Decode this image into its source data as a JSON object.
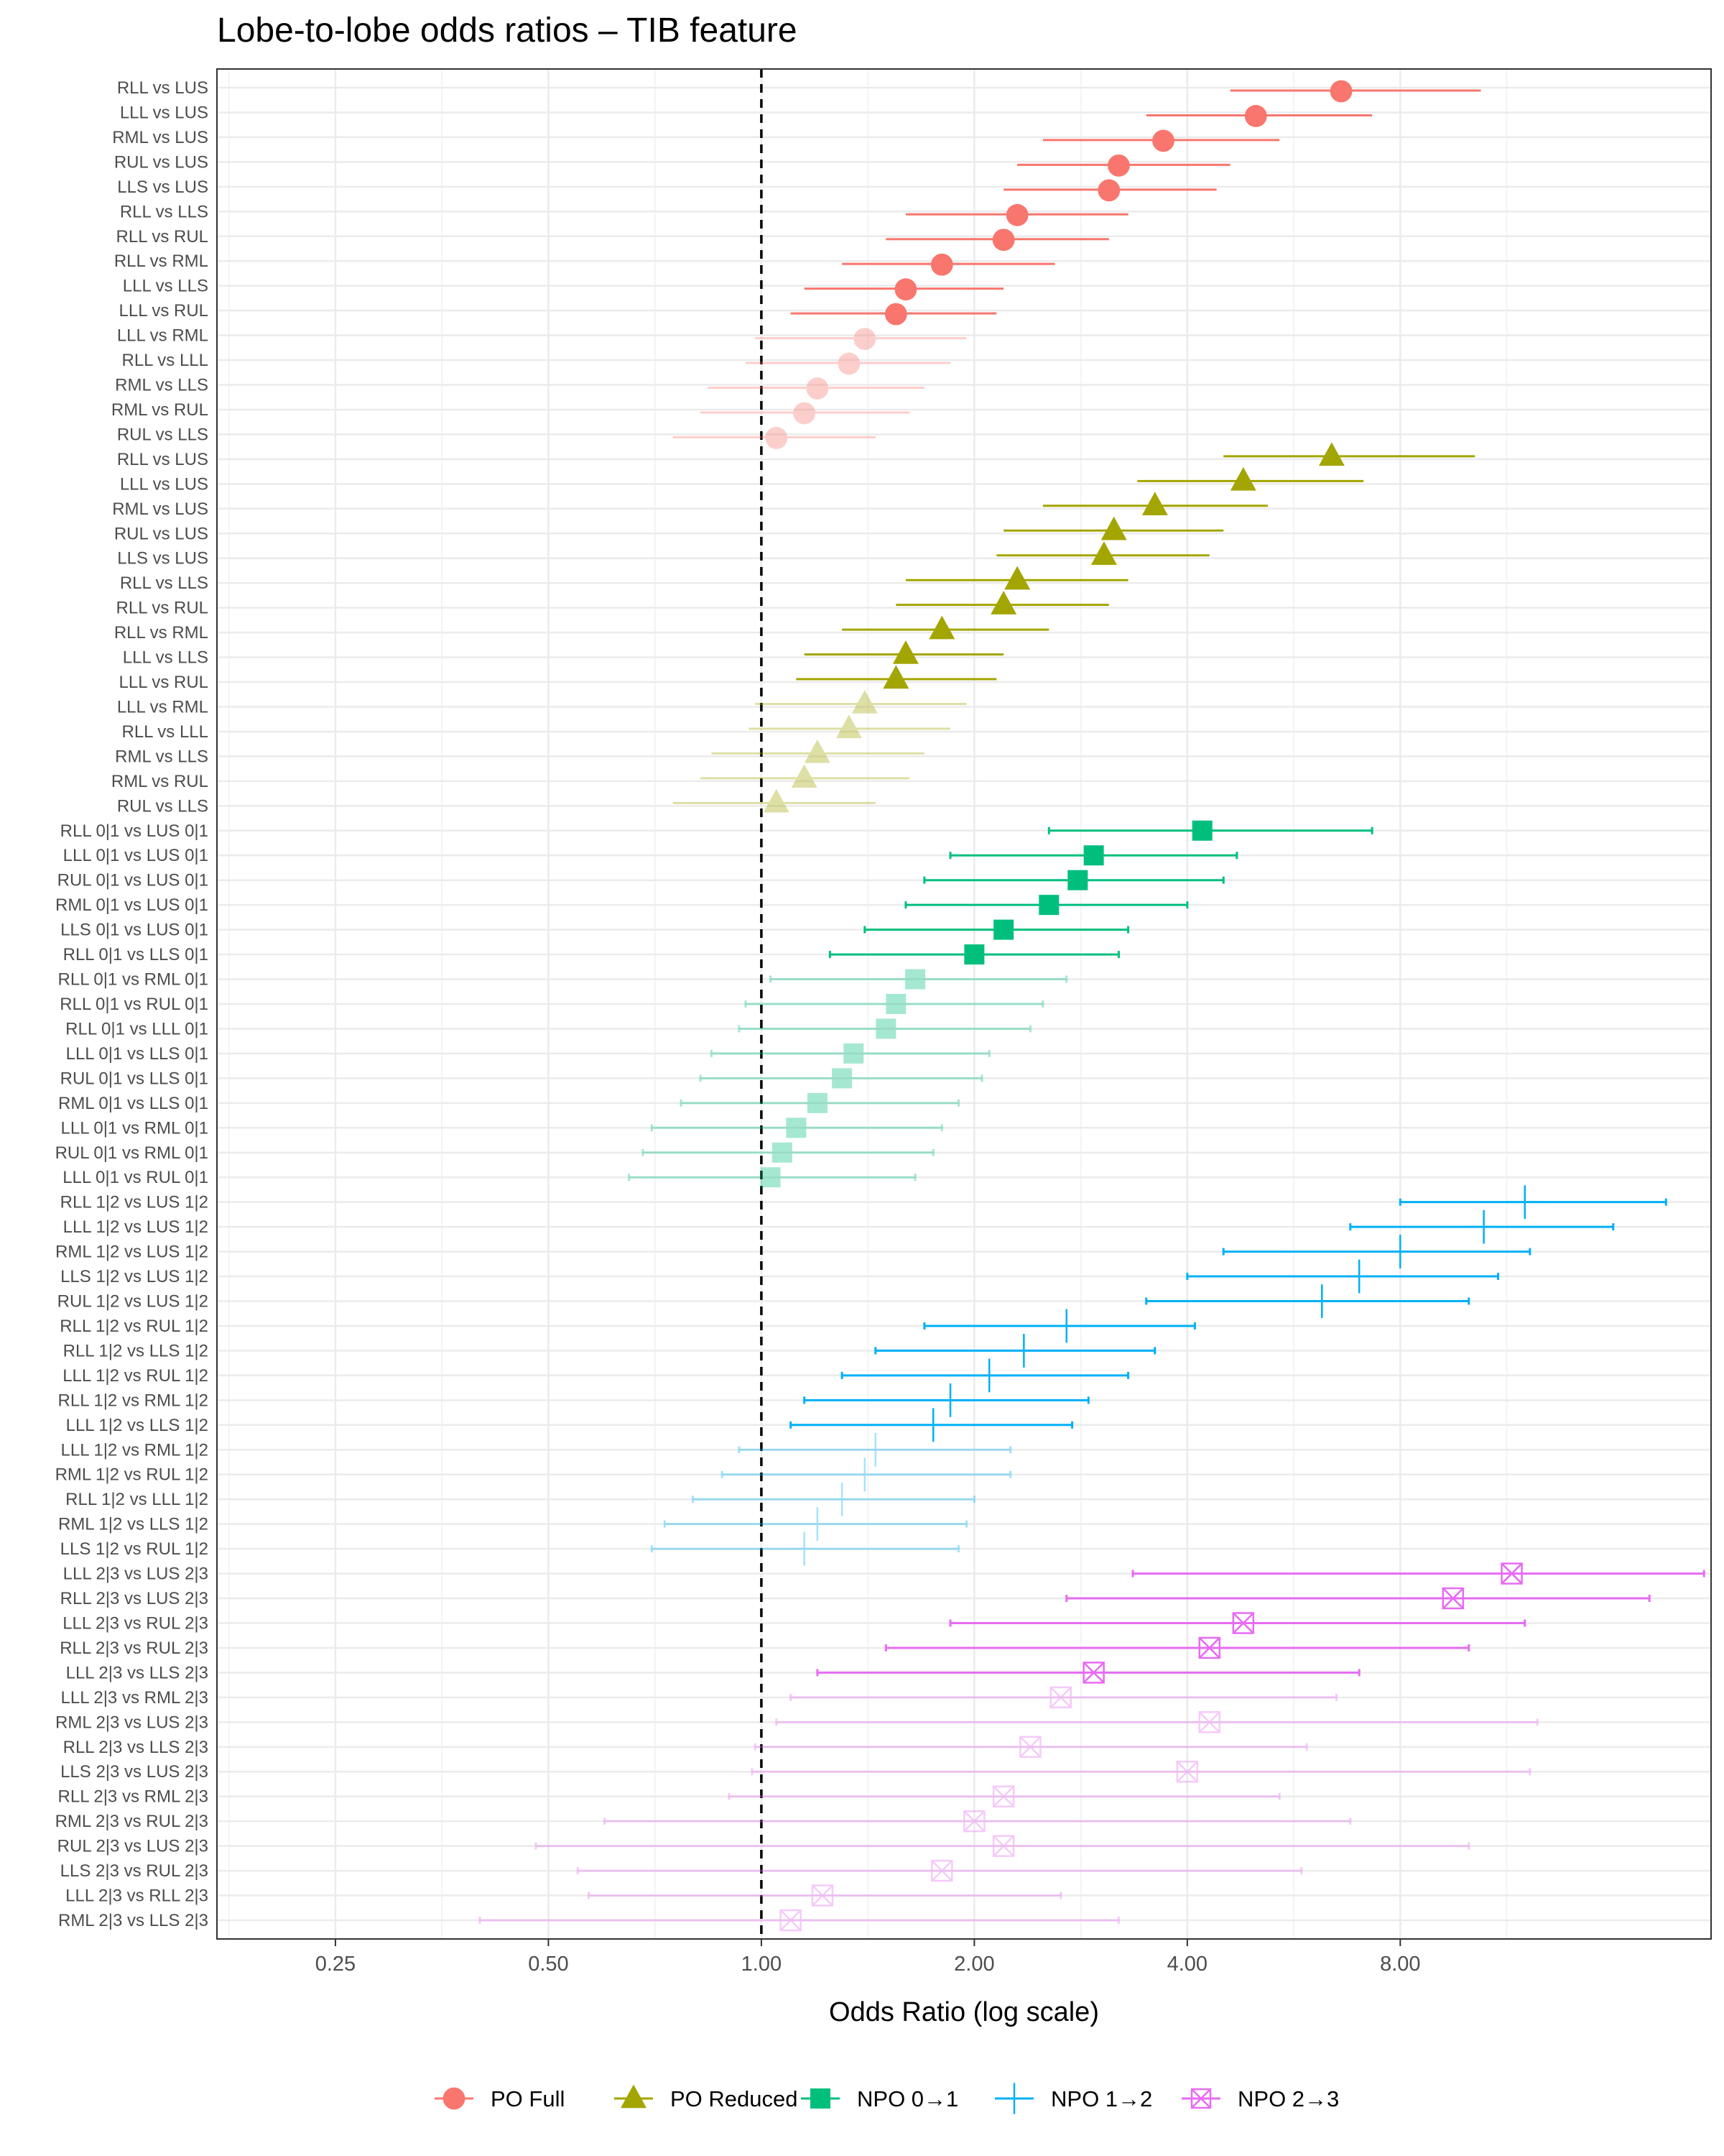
{
  "chart_data": {
    "type": "forest",
    "title": "Lobe-to-lobe odds ratios – TIB feature",
    "xlabel": "Odds Ratio (log scale)",
    "ylabel": "",
    "x_scale": "log2",
    "xlim": [
      0.17,
      22
    ],
    "x_ticks": [
      0.25,
      0.5,
      1,
      2,
      4,
      8
    ],
    "x_tick_labels": [
      "0.25",
      "0.50",
      "1.00",
      "2.00",
      "4.00",
      "8.00"
    ],
    "reference_line": 1,
    "grid": true,
    "legend_position": "bottom",
    "legend": [
      "PO Full",
      "PO Reduced",
      "NPO 0→1",
      "NPO 1→2",
      "NPO 2→3"
    ],
    "series": [
      {
        "name": "PO Full",
        "color": "#F8766D",
        "marker": "circle",
        "rows": [
          {
            "label": "RLL vs LUS",
            "or": 6.6,
            "lo": 4.6,
            "hi": 10.4,
            "sig": true
          },
          {
            "label": "LLL vs LUS",
            "or": 5.0,
            "lo": 3.5,
            "hi": 7.3,
            "sig": true
          },
          {
            "label": "RML vs LUS",
            "or": 3.7,
            "lo": 2.5,
            "hi": 5.4,
            "sig": true
          },
          {
            "label": "RUL vs LUS",
            "or": 3.2,
            "lo": 2.3,
            "hi": 4.6,
            "sig": true
          },
          {
            "label": "LLS vs LUS",
            "or": 3.1,
            "lo": 2.2,
            "hi": 4.4,
            "sig": true
          },
          {
            "label": "RLL vs LLS",
            "or": 2.3,
            "lo": 1.6,
            "hi": 3.3,
            "sig": true
          },
          {
            "label": "RLL vs RUL",
            "or": 2.2,
            "lo": 1.5,
            "hi": 3.1,
            "sig": true
          },
          {
            "label": "RLL vs RML",
            "or": 1.8,
            "lo": 1.3,
            "hi": 2.6,
            "sig": true
          },
          {
            "label": "LLL vs LLS",
            "or": 1.6,
            "lo": 1.15,
            "hi": 2.2,
            "sig": true
          },
          {
            "label": "LLL vs RUL",
            "or": 1.55,
            "lo": 1.1,
            "hi": 2.15,
            "sig": true
          },
          {
            "label": "LLL vs RML",
            "or": 1.4,
            "lo": 0.98,
            "hi": 1.95,
            "sig": false
          },
          {
            "label": "RLL vs LLL",
            "or": 1.33,
            "lo": 0.95,
            "hi": 1.85,
            "sig": false
          },
          {
            "label": "RML vs LLS",
            "or": 1.2,
            "lo": 0.84,
            "hi": 1.7,
            "sig": false
          },
          {
            "label": "RML vs RUL",
            "or": 1.15,
            "lo": 0.82,
            "hi": 1.62,
            "sig": false
          },
          {
            "label": "RUL vs LLS",
            "or": 1.05,
            "lo": 0.75,
            "hi": 1.45,
            "sig": false
          }
        ]
      },
      {
        "name": "PO Reduced",
        "color": "#A3A500",
        "marker": "triangle",
        "rows": [
          {
            "label": "RLL vs LUS",
            "or": 6.4,
            "lo": 4.5,
            "hi": 10.2,
            "sig": true
          },
          {
            "label": "LLL vs LUS",
            "or": 4.8,
            "lo": 3.4,
            "hi": 7.1,
            "sig": true
          },
          {
            "label": "RML vs LUS",
            "or": 3.6,
            "lo": 2.5,
            "hi": 5.2,
            "sig": true
          },
          {
            "label": "RUL vs LUS",
            "or": 3.15,
            "lo": 2.2,
            "hi": 4.5,
            "sig": true
          },
          {
            "label": "LLS vs LUS",
            "or": 3.05,
            "lo": 2.15,
            "hi": 4.3,
            "sig": true
          },
          {
            "label": "RLL vs LLS",
            "or": 2.3,
            "lo": 1.6,
            "hi": 3.3,
            "sig": true
          },
          {
            "label": "RLL vs RUL",
            "or": 2.2,
            "lo": 1.55,
            "hi": 3.1,
            "sig": true
          },
          {
            "label": "RLL vs RML",
            "or": 1.8,
            "lo": 1.3,
            "hi": 2.55,
            "sig": true
          },
          {
            "label": "LLL vs LLS",
            "or": 1.6,
            "lo": 1.15,
            "hi": 2.2,
            "sig": true
          },
          {
            "label": "LLL vs RUL",
            "or": 1.55,
            "lo": 1.12,
            "hi": 2.15,
            "sig": true
          },
          {
            "label": "LLL vs RML",
            "or": 1.4,
            "lo": 0.98,
            "hi": 1.95,
            "sig": false
          },
          {
            "label": "RLL vs LLL",
            "or": 1.33,
            "lo": 0.96,
            "hi": 1.85,
            "sig": false
          },
          {
            "label": "RML vs LLS",
            "or": 1.2,
            "lo": 0.85,
            "hi": 1.7,
            "sig": false
          },
          {
            "label": "RML vs RUL",
            "or": 1.15,
            "lo": 0.82,
            "hi": 1.62,
            "sig": false
          },
          {
            "label": "RUL vs LLS",
            "or": 1.05,
            "lo": 0.75,
            "hi": 1.45,
            "sig": false
          }
        ]
      },
      {
        "name": "NPO 0→1",
        "color": "#00BF7D",
        "marker": "square",
        "rows": [
          {
            "label": "RLL 0|1 vs LUS 0|1",
            "or": 4.2,
            "lo": 2.55,
            "hi": 7.3,
            "sig": true
          },
          {
            "label": "LLL 0|1 vs LUS 0|1",
            "or": 2.95,
            "lo": 1.85,
            "hi": 4.7,
            "sig": true
          },
          {
            "label": "RUL 0|1 vs LUS 0|1",
            "or": 2.8,
            "lo": 1.7,
            "hi": 4.5,
            "sig": true
          },
          {
            "label": "RML 0|1 vs LUS 0|1",
            "or": 2.55,
            "lo": 1.6,
            "hi": 4.0,
            "sig": true
          },
          {
            "label": "LLS 0|1 vs LUS 0|1",
            "or": 2.2,
            "lo": 1.4,
            "hi": 3.3,
            "sig": true
          },
          {
            "label": "RLL 0|1 vs LLS 0|1",
            "or": 2.0,
            "lo": 1.25,
            "hi": 3.2,
            "sig": true
          },
          {
            "label": "RLL 0|1 vs RML 0|1",
            "or": 1.65,
            "lo": 1.03,
            "hi": 2.7,
            "sig": false
          },
          {
            "label": "RLL 0|1 vs RUL 0|1",
            "or": 1.55,
            "lo": 0.95,
            "hi": 2.5,
            "sig": false
          },
          {
            "label": "RLL 0|1 vs LLL 0|1",
            "or": 1.5,
            "lo": 0.93,
            "hi": 2.4,
            "sig": false
          },
          {
            "label": "LLL 0|1 vs LLS 0|1",
            "or": 1.35,
            "lo": 0.85,
            "hi": 2.1,
            "sig": false
          },
          {
            "label": "RUL 0|1 vs LLS 0|1",
            "or": 1.3,
            "lo": 0.82,
            "hi": 2.05,
            "sig": false
          },
          {
            "label": "RML 0|1 vs LLS 0|1",
            "or": 1.2,
            "lo": 0.77,
            "hi": 1.9,
            "sig": false
          },
          {
            "label": "LLL 0|1 vs RML 0|1",
            "or": 1.12,
            "lo": 0.7,
            "hi": 1.8,
            "sig": false
          },
          {
            "label": "RUL 0|1 vs RML 0|1",
            "or": 1.07,
            "lo": 0.68,
            "hi": 1.75,
            "sig": false
          },
          {
            "label": "LLL 0|1 vs RUL 0|1",
            "or": 1.03,
            "lo": 0.65,
            "hi": 1.65,
            "sig": false
          }
        ]
      },
      {
        "name": "NPO 1→2",
        "color": "#00B0F6",
        "marker": "cross",
        "rows": [
          {
            "label": "RLL 1|2 vs LUS 1|2",
            "or": 12.0,
            "lo": 8.0,
            "hi": 19.0,
            "sig": true
          },
          {
            "label": "LLL 1|2 vs LUS 1|2",
            "or": 10.5,
            "lo": 6.8,
            "hi": 16.0,
            "sig": true
          },
          {
            "label": "RML 1|2 vs LUS 1|2",
            "or": 8.0,
            "lo": 4.5,
            "hi": 12.2,
            "sig": true
          },
          {
            "label": "LLS 1|2 vs LUS 1|2",
            "or": 7.0,
            "lo": 4.0,
            "hi": 11.0,
            "sig": true
          },
          {
            "label": "RUL 1|2 vs LUS 1|2",
            "or": 6.2,
            "lo": 3.5,
            "hi": 10.0,
            "sig": true
          },
          {
            "label": "RLL 1|2 vs RUL 1|2",
            "or": 2.7,
            "lo": 1.7,
            "hi": 4.1,
            "sig": true
          },
          {
            "label": "RLL 1|2 vs LLS 1|2",
            "or": 2.35,
            "lo": 1.45,
            "hi": 3.6,
            "sig": true
          },
          {
            "label": "LLL 1|2 vs RUL 1|2",
            "or": 2.1,
            "lo": 1.3,
            "hi": 3.3,
            "sig": true
          },
          {
            "label": "RLL 1|2 vs RML 1|2",
            "or": 1.85,
            "lo": 1.15,
            "hi": 2.9,
            "sig": true
          },
          {
            "label": "LLL 1|2 vs LLS 1|2",
            "or": 1.75,
            "lo": 1.1,
            "hi": 2.75,
            "sig": true
          },
          {
            "label": "LLL 1|2 vs RML 1|2",
            "or": 1.45,
            "lo": 0.93,
            "hi": 2.25,
            "sig": false
          },
          {
            "label": "RML 1|2 vs RUL 1|2",
            "or": 1.4,
            "lo": 0.88,
            "hi": 2.25,
            "sig": false
          },
          {
            "label": "RLL 1|2 vs LLL 1|2",
            "or": 1.3,
            "lo": 0.8,
            "hi": 2.0,
            "sig": false
          },
          {
            "label": "RML 1|2 vs LLS 1|2",
            "or": 1.2,
            "lo": 0.73,
            "hi": 1.95,
            "sig": false
          },
          {
            "label": "LLS 1|2 vs RUL 1|2",
            "or": 1.15,
            "lo": 0.7,
            "hi": 1.9,
            "sig": false
          }
        ]
      },
      {
        "name": "NPO 2→3",
        "color": "#E76BF3",
        "marker": "square-x",
        "rows": [
          {
            "label": "LLL 2|3 vs LUS 2|3",
            "or": 11.5,
            "lo": 3.35,
            "hi": 21.5,
            "sig": true
          },
          {
            "label": "RLL 2|3 vs LUS 2|3",
            "or": 9.5,
            "lo": 2.7,
            "hi": 18.0,
            "sig": true
          },
          {
            "label": "LLL 2|3 vs RUL 2|3",
            "or": 4.8,
            "lo": 1.85,
            "hi": 12.0,
            "sig": true
          },
          {
            "label": "RLL 2|3 vs RUL 2|3",
            "or": 4.3,
            "lo": 1.5,
            "hi": 10.0,
            "sig": true
          },
          {
            "label": "LLL 2|3 vs LLS 2|3",
            "or": 2.95,
            "lo": 1.2,
            "hi": 7.0,
            "sig": true
          },
          {
            "label": "LLL 2|3 vs RML 2|3",
            "or": 2.65,
            "lo": 1.1,
            "hi": 6.5,
            "sig": false
          },
          {
            "label": "RML 2|3 vs LUS 2|3",
            "or": 4.3,
            "lo": 1.05,
            "hi": 12.5,
            "sig": false
          },
          {
            "label": "RLL 2|3 vs LLS 2|3",
            "or": 2.4,
            "lo": 0.98,
            "hi": 5.9,
            "sig": false
          },
          {
            "label": "LLS 2|3 vs LUS 2|3",
            "or": 4.0,
            "lo": 0.97,
            "hi": 12.2,
            "sig": false
          },
          {
            "label": "RLL 2|3 vs RML 2|3",
            "or": 2.2,
            "lo": 0.9,
            "hi": 5.4,
            "sig": false
          },
          {
            "label": "RML 2|3 vs RUL 2|3",
            "or": 2.0,
            "lo": 0.6,
            "hi": 6.8,
            "sig": false
          },
          {
            "label": "RUL 2|3 vs LUS 2|3",
            "or": 2.2,
            "lo": 0.48,
            "hi": 10.0,
            "sig": false
          },
          {
            "label": "LLS 2|3 vs RUL 2|3",
            "or": 1.8,
            "lo": 0.55,
            "hi": 5.8,
            "sig": false
          },
          {
            "label": "LLL 2|3 vs RLL 2|3",
            "or": 1.22,
            "lo": 0.57,
            "hi": 2.65,
            "sig": false
          },
          {
            "label": "RML 2|3 vs LLS 2|3",
            "or": 1.1,
            "lo": 0.4,
            "hi": 3.2,
            "sig": false
          }
        ]
      }
    ]
  }
}
